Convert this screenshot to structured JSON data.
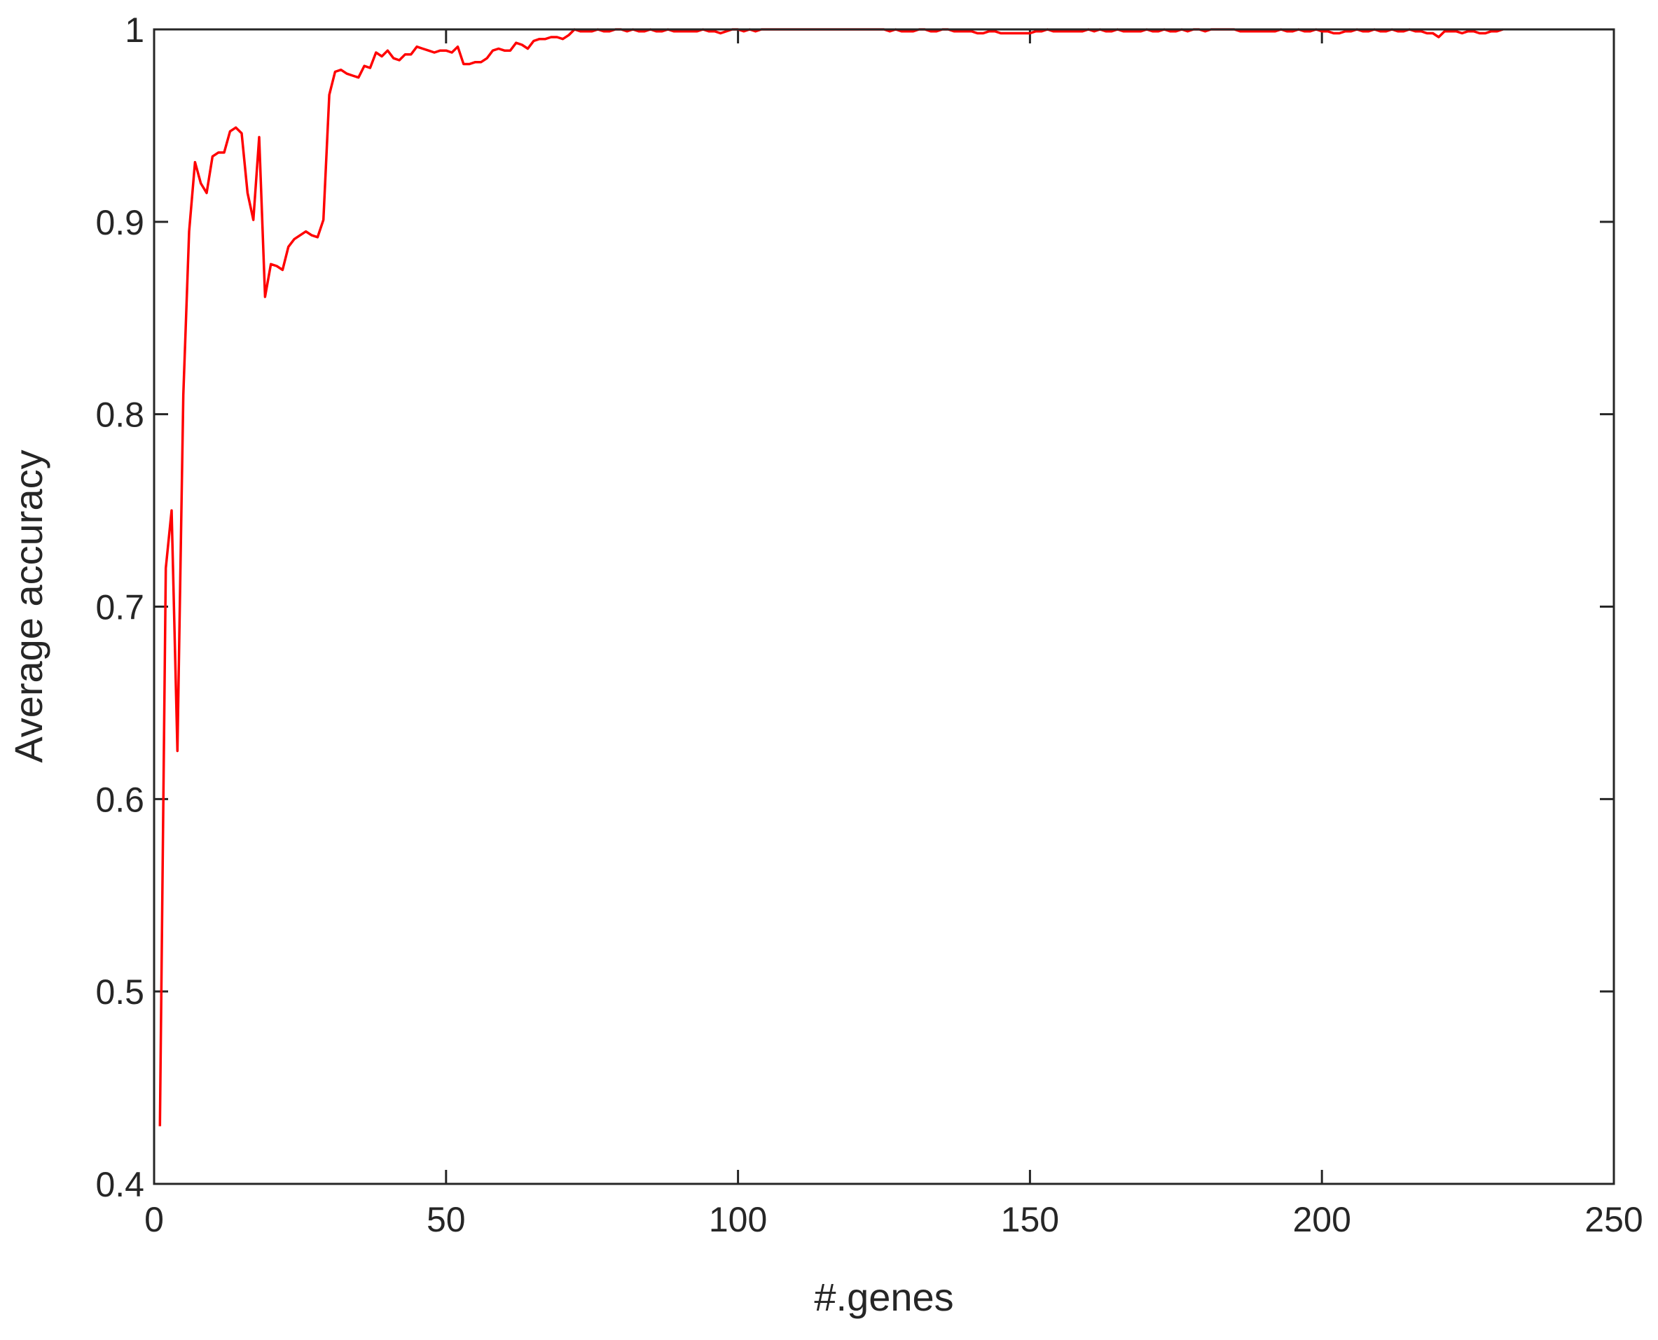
{
  "chart_data": {
    "type": "line",
    "title": "",
    "xlabel": "#.genes",
    "ylabel": "Average accuracy",
    "xlim": [
      0,
      250
    ],
    "ylim": [
      0.4,
      1
    ],
    "xticks": [
      "0",
      "50",
      "100",
      "150",
      "200",
      "250"
    ],
    "yticks": [
      "0.4",
      "0.5",
      "0.6",
      "0.7",
      "0.8",
      "0.9",
      "1"
    ],
    "grid": false,
    "line_color": "#ff0000",
    "axis_color": "#262626",
    "x_start": 1,
    "series": [
      {
        "values": [
          0.43,
          0.72,
          0.75,
          0.625,
          0.81,
          0.895,
          0.931,
          0.92,
          0.915,
          0.934,
          0.936,
          0.936,
          0.947,
          0.949,
          0.946,
          0.915,
          0.901,
          0.944,
          0.861,
          0.878,
          0.877,
          0.875,
          0.887,
          0.891,
          0.893,
          0.895,
          0.893,
          0.892,
          0.901,
          0.966,
          0.978,
          0.979,
          0.977,
          0.976,
          0.975,
          0.981,
          0.98,
          0.988,
          0.986,
          0.989,
          0.985,
          0.984,
          0.987,
          0.987,
          0.991,
          0.99,
          0.989,
          0.988,
          0.989,
          0.989,
          0.988,
          0.991,
          0.982,
          0.982,
          0.983,
          0.983,
          0.985,
          0.989,
          0.99,
          0.989,
          0.989,
          0.993,
          0.992,
          0.99,
          0.994,
          0.995,
          0.995,
          0.996,
          0.996,
          0.995,
          0.997,
          1.0,
          0.999,
          0.999,
          0.999,
          1.0,
          0.999,
          0.999,
          1.0,
          1.0,
          0.999,
          1,
          0.999,
          0.999,
          1,
          0.999,
          0.999,
          1,
          0.999,
          0.999,
          0.999,
          0.999,
          0.999,
          1,
          0.999,
          0.999,
          0.998,
          0.999,
          1,
          1,
          0.999,
          1,
          0.999,
          1,
          1,
          1,
          1,
          1,
          1,
          1,
          1,
          1,
          1,
          1,
          1,
          1,
          1,
          1,
          1,
          1,
          1,
          1,
          1,
          1,
          1,
          0.999,
          1,
          0.999,
          0.999,
          0.999,
          1,
          1,
          0.999,
          0.999,
          1,
          1,
          0.999,
          0.999,
          0.999,
          0.999,
          0.998,
          0.998,
          0.999,
          0.999,
          0.998,
          0.998,
          0.998,
          0.998,
          0.998,
          0.998,
          0.999,
          0.999,
          1,
          0.999,
          0.999,
          0.999,
          0.999,
          0.999,
          0.999,
          1,
          0.999,
          1,
          0.999,
          0.999,
          1,
          0.999,
          0.999,
          0.999,
          0.999,
          1,
          0.999,
          0.999,
          1,
          0.999,
          0.999,
          1,
          0.999,
          1,
          1,
          0.999,
          1,
          1,
          1,
          1,
          1,
          0.999,
          0.999,
          0.999,
          0.999,
          0.999,
          0.999,
          0.999,
          1,
          0.999,
          0.999,
          1,
          0.999,
          0.999,
          1,
          0.999,
          0.999,
          0.998,
          0.998,
          0.999,
          0.999,
          1,
          0.999,
          0.999,
          1,
          0.999,
          0.999,
          1,
          0.999,
          0.999,
          1,
          0.999,
          0.999,
          0.998,
          0.998,
          0.996,
          0.999,
          0.999,
          0.999,
          0.998,
          0.999,
          0.999,
          0.998,
          0.998,
          0.999,
          0.999,
          1
        ]
      }
    ]
  }
}
